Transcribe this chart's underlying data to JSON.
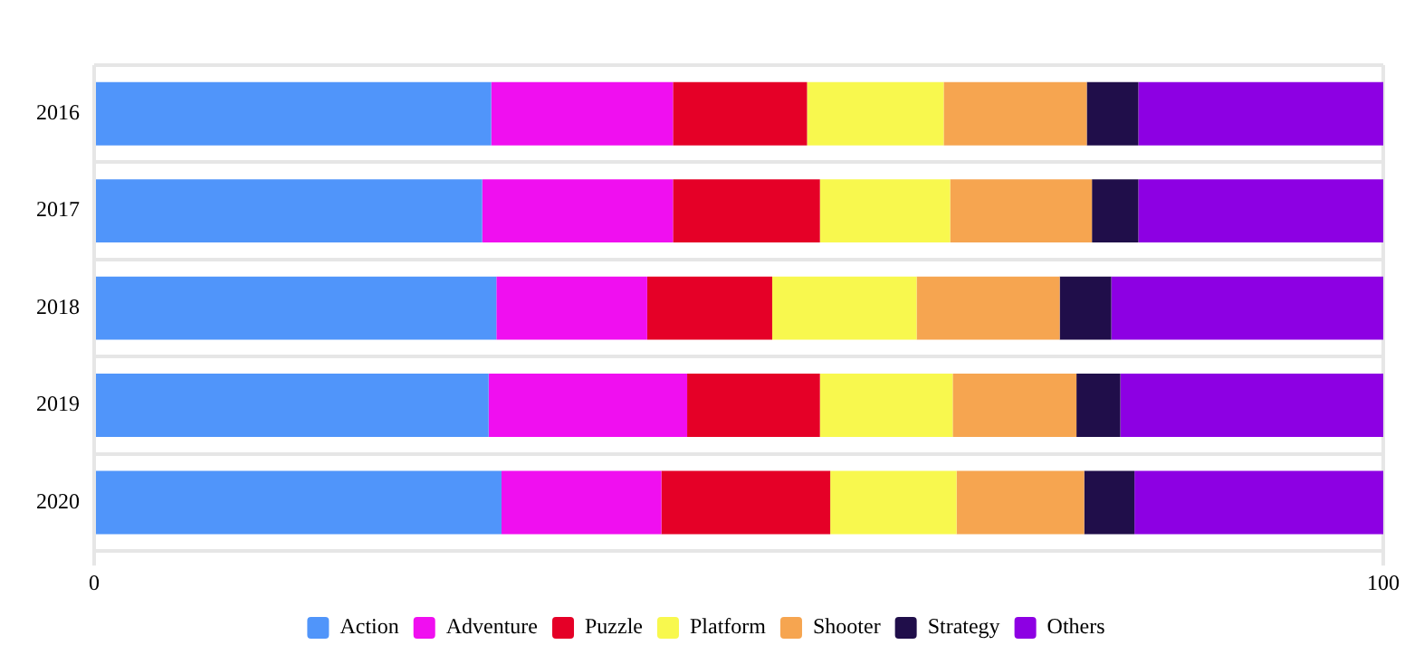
{
  "chart_data": {
    "type": "bar",
    "orientation": "horizontal",
    "stacked": true,
    "categories": [
      "2016",
      "2017",
      "2018",
      "2019",
      "2020"
    ],
    "series": [
      {
        "name": "Action",
        "color": "#5095fa",
        "values": [
          30.8,
          30.1,
          31.2,
          30.6,
          31.6
        ]
      },
      {
        "name": "Adventure",
        "color": "#f00ff0",
        "values": [
          14.1,
          14.8,
          11.7,
          15.4,
          12.4
        ]
      },
      {
        "name": "Puzzle",
        "color": "#e50027",
        "values": [
          10.4,
          11.4,
          9.7,
          10.3,
          13.1
        ]
      },
      {
        "name": "Platform",
        "color": "#f8f84e",
        "values": [
          10.6,
          10.1,
          11.2,
          10.3,
          9.8
        ]
      },
      {
        "name": "Shooter",
        "color": "#f6a550",
        "values": [
          11.1,
          11.0,
          11.1,
          9.6,
          9.9
        ]
      },
      {
        "name": "Strategy",
        "color": "#200e4a",
        "values": [
          4.0,
          3.6,
          4.0,
          3.4,
          3.9
        ]
      },
      {
        "name": "Others",
        "color": "#8d00e3",
        "values": [
          19.0,
          19.0,
          21.1,
          20.4,
          19.3
        ]
      }
    ],
    "xlim": [
      0,
      100
    ],
    "xticks": [
      0,
      100
    ],
    "grid": true,
    "legend": "bottom"
  }
}
